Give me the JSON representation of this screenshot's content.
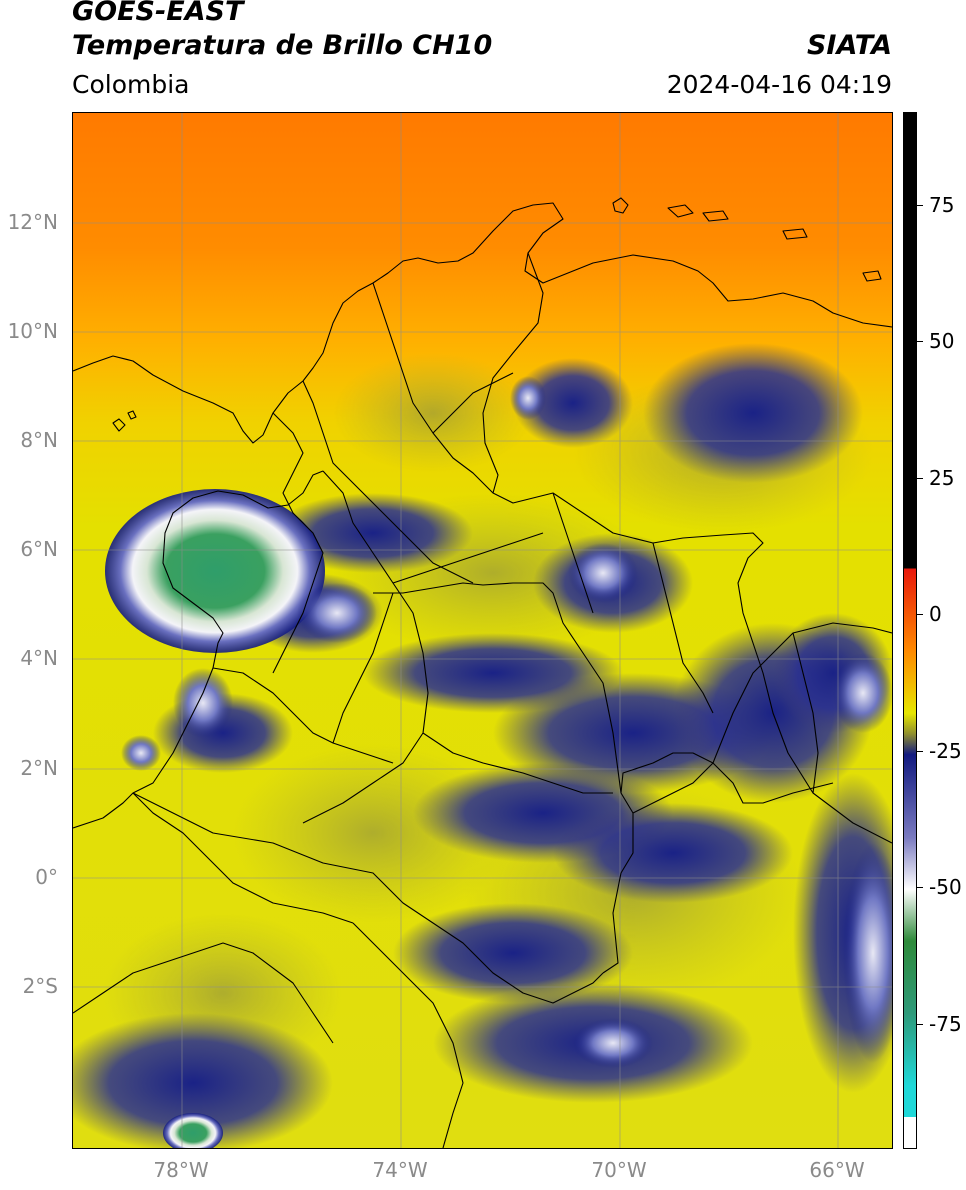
{
  "header": {
    "satellite": "GOES-EAST",
    "product": "Temperatura de Brillo CH10",
    "brand": "SIATA",
    "region": "Colombia",
    "datetime": "2024-04-16 04:19"
  },
  "map": {
    "lat_labels": [
      "12°N",
      "10°N",
      "8°N",
      "6°N",
      "4°N",
      "2°N",
      "0°",
      "2°S"
    ],
    "lon_labels": [
      "78°W",
      "74°W",
      "70°W",
      "66°W"
    ],
    "lon_range": [
      -80,
      -65
    ],
    "lat_range": [
      -5,
      14
    ]
  },
  "colorbar": {
    "labels": [
      "75",
      "50",
      "25",
      "0",
      "-25",
      "-50",
      "-75"
    ],
    "unit_values": [
      75,
      50,
      25,
      0,
      -25,
      -50,
      -75
    ],
    "colors": {
      "hot": "#000000",
      "red": "#e8180c",
      "orange": "#ff8a00",
      "yellow": "#e6e600",
      "olive": "#8f8f2e",
      "navy": "#121a80",
      "white": "#ffffff",
      "green": "#2e8a3a",
      "cyan": "#1fd8d8"
    }
  }
}
